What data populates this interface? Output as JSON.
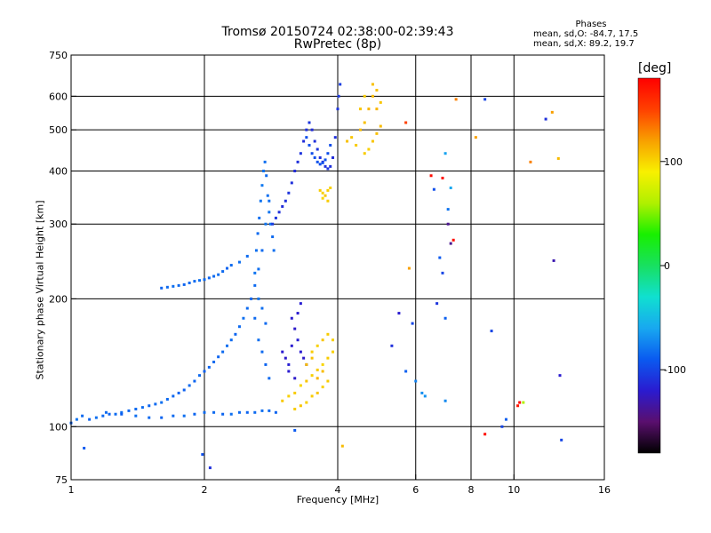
{
  "header": {
    "title_line1": "Tromsø 20150724 02:38:00-02:39:43",
    "title_line2": "RwPretec (8p)"
  },
  "phases": {
    "heading": "Phases",
    "o_line": "mean, sd,O: -84.7, 17.5",
    "x_line": "mean, sd,X:  89.2, 19.7"
  },
  "colorbar": {
    "label": "[deg]",
    "ticks": [
      {
        "value": 100,
        "label": "100"
      },
      {
        "value": 0,
        "label": "0"
      },
      {
        "value": -100,
        "label": "-100"
      }
    ],
    "range": [
      -180,
      180
    ],
    "colors": [
      "#000000",
      "#5a0f6e",
      "#2a1bd0",
      "#0a5af0",
      "#18a8f0",
      "#10e0d0",
      "#18e060",
      "#18f000",
      "#b0f000",
      "#f8f000",
      "#f8a000",
      "#ff4000",
      "#ff0000"
    ]
  },
  "chart_data": {
    "type": "scatter",
    "xlabel": "Frequency [MHz]",
    "ylabel": "Stationary phase Virtual Height [km]",
    "xscale": "log",
    "yscale": "log",
    "xlim": [
      1,
      16
    ],
    "ylim": [
      75,
      750
    ],
    "x_ticks": [
      {
        "value": 1,
        "label": "1"
      },
      {
        "value": 2,
        "label": "2"
      },
      {
        "value": 4,
        "label": "4"
      },
      {
        "value": 6,
        "label": "6"
      },
      {
        "value": 8,
        "label": "8"
      },
      {
        "value": 10,
        "label": "10"
      },
      {
        "value": 16,
        "label": "16"
      }
    ],
    "y_ticks": [
      {
        "value": 75,
        "label": "75"
      },
      {
        "value": 100,
        "label": "100"
      },
      {
        "value": 200,
        "label": "200"
      },
      {
        "value": 300,
        "label": "300"
      },
      {
        "value": 400,
        "label": "400"
      },
      {
        "value": 500,
        "label": "500"
      },
      {
        "value": 600,
        "label": "600"
      },
      {
        "value": 750,
        "label": "750"
      }
    ],
    "grid_x": [
      2,
      4,
      6,
      8,
      10
    ],
    "grid_y": [
      100,
      200,
      300,
      400,
      500,
      600
    ],
    "color_by": "phase [deg]",
    "points": [
      [
        1.0,
        102,
        -88
      ],
      [
        1.03,
        104,
        -80
      ],
      [
        1.06,
        106,
        -84
      ],
      [
        1.1,
        104,
        -86
      ],
      [
        1.14,
        105,
        -82
      ],
      [
        1.18,
        106,
        -84
      ],
      [
        1.22,
        107,
        -86
      ],
      [
        1.26,
        107,
        -84
      ],
      [
        1.3,
        108,
        -82
      ],
      [
        1.35,
        109,
        -85
      ],
      [
        1.4,
        110,
        -84
      ],
      [
        1.45,
        111,
        -83
      ],
      [
        1.5,
        112,
        -86
      ],
      [
        1.55,
        113,
        -84
      ],
      [
        1.6,
        114,
        -82
      ],
      [
        1.65,
        116,
        -84
      ],
      [
        1.7,
        118,
        -85
      ],
      [
        1.75,
        120,
        -86
      ],
      [
        1.8,
        122,
        -88
      ],
      [
        1.85,
        125,
        -84
      ],
      [
        1.9,
        128,
        -86
      ],
      [
        1.95,
        132,
        -84
      ],
      [
        2.0,
        135,
        -88
      ],
      [
        2.05,
        138,
        -86
      ],
      [
        2.1,
        142,
        -84
      ],
      [
        2.15,
        146,
        -86
      ],
      [
        2.2,
        150,
        -84
      ],
      [
        2.25,
        155,
        -82
      ],
      [
        2.3,
        160,
        -84
      ],
      [
        2.35,
        165,
        -86
      ],
      [
        2.4,
        172,
        -84
      ],
      [
        2.45,
        180,
        -82
      ],
      [
        2.5,
        190,
        -84
      ],
      [
        2.55,
        200,
        -86
      ],
      [
        2.6,
        215,
        -84
      ],
      [
        2.65,
        235,
        -82
      ],
      [
        2.7,
        260,
        -84
      ],
      [
        2.75,
        300,
        -80
      ],
      [
        2.8,
        340,
        -82
      ],
      [
        1.2,
        108,
        -84
      ],
      [
        1.3,
        107,
        -88
      ],
      [
        1.4,
        106,
        -82
      ],
      [
        1.5,
        105,
        -84
      ],
      [
        1.6,
        105,
        -86
      ],
      [
        1.7,
        106,
        -84
      ],
      [
        1.8,
        106,
        -82
      ],
      [
        1.9,
        107,
        -86
      ],
      [
        2.0,
        108,
        -84
      ],
      [
        2.1,
        108,
        -84
      ],
      [
        2.2,
        107,
        -86
      ],
      [
        2.3,
        107,
        -82
      ],
      [
        2.4,
        108,
        -84
      ],
      [
        2.5,
        108,
        -86
      ],
      [
        2.6,
        108,
        -84
      ],
      [
        2.7,
        109,
        -82
      ],
      [
        2.8,
        109,
        -84
      ],
      [
        2.9,
        108,
        -86
      ],
      [
        1.6,
        212,
        -86
      ],
      [
        1.65,
        213,
        -84
      ],
      [
        1.7,
        214,
        -82
      ],
      [
        1.75,
        215,
        -84
      ],
      [
        1.8,
        216,
        -86
      ],
      [
        1.85,
        218,
        -84
      ],
      [
        1.9,
        220,
        -84
      ],
      [
        1.95,
        221,
        -82
      ],
      [
        2.0,
        222,
        -84
      ],
      [
        2.05,
        224,
        -86
      ],
      [
        2.1,
        226,
        -84
      ],
      [
        2.15,
        228,
        -82
      ],
      [
        2.2,
        232,
        -84
      ],
      [
        2.25,
        236,
        -86
      ],
      [
        2.3,
        240,
        -84
      ],
      [
        2.4,
        244,
        -82
      ],
      [
        2.5,
        252,
        -84
      ],
      [
        2.6,
        230,
        -80
      ],
      [
        2.62,
        260,
        -82
      ],
      [
        2.64,
        285,
        -84
      ],
      [
        2.66,
        310,
        -82
      ],
      [
        2.68,
        340,
        -80
      ],
      [
        2.7,
        370,
        -78
      ],
      [
        2.72,
        400,
        -80
      ],
      [
        2.74,
        420,
        -82
      ],
      [
        2.76,
        390,
        -84
      ],
      [
        2.78,
        350,
        -82
      ],
      [
        2.8,
        320,
        -80
      ],
      [
        2.82,
        300,
        -82
      ],
      [
        2.85,
        280,
        -84
      ],
      [
        2.87,
        260,
        -82
      ],
      [
        2.6,
        180,
        -84
      ],
      [
        2.65,
        160,
        -82
      ],
      [
        2.7,
        150,
        -84
      ],
      [
        2.75,
        140,
        -86
      ],
      [
        2.8,
        130,
        -84
      ],
      [
        2.65,
        200,
        -80
      ],
      [
        2.7,
        190,
        -82
      ],
      [
        2.75,
        175,
        -84
      ],
      [
        2.85,
        300,
        -105
      ],
      [
        2.9,
        310,
        -108
      ],
      [
        2.95,
        320,
        -110
      ],
      [
        3.0,
        330,
        -112
      ],
      [
        3.05,
        340,
        -110
      ],
      [
        3.1,
        355,
        -108
      ],
      [
        3.15,
        375,
        -110
      ],
      [
        3.2,
        400,
        -112
      ],
      [
        3.25,
        420,
        -110
      ],
      [
        3.3,
        440,
        -108
      ],
      [
        3.35,
        470,
        -112
      ],
      [
        3.4,
        500,
        -110
      ],
      [
        3.45,
        520,
        -108
      ],
      [
        3.5,
        500,
        -112
      ],
      [
        3.55,
        470,
        -110
      ],
      [
        3.6,
        450,
        -108
      ],
      [
        3.65,
        430,
        -110
      ],
      [
        3.7,
        420,
        -112
      ],
      [
        3.75,
        410,
        -110
      ],
      [
        3.8,
        405,
        -108
      ],
      [
        3.85,
        410,
        -110
      ],
      [
        3.9,
        430,
        -112
      ],
      [
        3.95,
        480,
        -110
      ],
      [
        4.0,
        560,
        -108
      ],
      [
        4.02,
        600,
        -106
      ],
      [
        4.05,
        640,
        -104
      ],
      [
        3.4,
        480,
        -95
      ],
      [
        3.45,
        460,
        -94
      ],
      [
        3.5,
        440,
        -96
      ],
      [
        3.55,
        430,
        -95
      ],
      [
        3.6,
        420,
        -94
      ],
      [
        3.65,
        415,
        -96
      ],
      [
        3.7,
        418,
        -95
      ],
      [
        3.75,
        425,
        -94
      ],
      [
        3.8,
        440,
        -95
      ],
      [
        3.85,
        460,
        -96
      ],
      [
        3.0,
        150,
        -120
      ],
      [
        3.05,
        145,
        -122
      ],
      [
        3.1,
        140,
        -118
      ],
      [
        3.15,
        155,
        -120
      ],
      [
        3.2,
        170,
        -122
      ],
      [
        3.25,
        160,
        -118
      ],
      [
        3.3,
        150,
        -120
      ],
      [
        3.35,
        145,
        -122
      ],
      [
        3.4,
        140,
        -118
      ],
      [
        3.1,
        135,
        -120
      ],
      [
        3.2,
        130,
        -122
      ],
      [
        3.15,
        180,
        -120
      ],
      [
        3.3,
        195,
        -118
      ],
      [
        3.25,
        185,
        -120
      ],
      [
        3.0,
        115,
        105
      ],
      [
        3.1,
        118,
        102
      ],
      [
        3.2,
        120,
        104
      ],
      [
        3.3,
        125,
        100
      ],
      [
        3.4,
        128,
        106
      ],
      [
        3.5,
        132,
        102
      ],
      [
        3.6,
        136,
        104
      ],
      [
        3.7,
        140,
        100
      ],
      [
        3.8,
        145,
        104
      ],
      [
        3.9,
        150,
        102
      ],
      [
        3.2,
        110,
        104
      ],
      [
        3.3,
        112,
        106
      ],
      [
        3.4,
        114,
        102
      ],
      [
        3.5,
        118,
        104
      ],
      [
        3.6,
        120,
        106
      ],
      [
        3.7,
        124,
        102
      ],
      [
        3.8,
        128,
        104
      ],
      [
        3.5,
        150,
        104
      ],
      [
        3.6,
        155,
        102
      ],
      [
        3.7,
        160,
        106
      ],
      [
        3.8,
        165,
        104
      ],
      [
        3.9,
        160,
        102
      ],
      [
        3.4,
        140,
        110
      ],
      [
        3.5,
        145,
        108
      ],
      [
        3.6,
        130,
        112
      ],
      [
        3.7,
        135,
        110
      ],
      [
        3.65,
        360,
        104
      ],
      [
        3.7,
        355,
        102
      ],
      [
        3.75,
        350,
        106
      ],
      [
        3.8,
        360,
        104
      ],
      [
        3.85,
        365,
        102
      ],
      [
        3.7,
        345,
        100
      ],
      [
        3.8,
        340,
        104
      ],
      [
        4.2,
        470,
        108
      ],
      [
        4.3,
        480,
        106
      ],
      [
        4.4,
        460,
        104
      ],
      [
        4.5,
        500,
        110
      ],
      [
        4.6,
        520,
        108
      ],
      [
        4.7,
        560,
        112
      ],
      [
        4.8,
        600,
        110
      ],
      [
        4.9,
        620,
        108
      ],
      [
        5.0,
        580,
        106
      ],
      [
        4.6,
        440,
        104
      ],
      [
        4.7,
        450,
        102
      ],
      [
        4.8,
        470,
        106
      ],
      [
        4.9,
        490,
        108
      ],
      [
        5.0,
        510,
        110
      ],
      [
        4.5,
        560,
        106
      ],
      [
        4.6,
        600,
        104
      ],
      [
        4.8,
        640,
        108
      ],
      [
        4.9,
        560,
        112
      ],
      [
        5.7,
        520,
        150
      ],
      [
        5.8,
        236,
        120
      ],
      [
        6.5,
        390,
        175
      ],
      [
        6.6,
        362,
        -95
      ],
      [
        6.7,
        195,
        -108
      ],
      [
        6.8,
        250,
        -90
      ],
      [
        6.9,
        230,
        -100
      ],
      [
        7.0,
        180,
        -88
      ],
      [
        7.0,
        115,
        -72
      ],
      [
        7.1,
        325,
        -80
      ],
      [
        7.1,
        300,
        -140
      ],
      [
        7.2,
        270,
        -140
      ],
      [
        7.3,
        275,
        175
      ],
      [
        7.4,
        590,
        130
      ],
      [
        7.0,
        440,
        -62
      ],
      [
        6.9,
        385,
        175
      ],
      [
        7.2,
        365,
        -60
      ],
      [
        8.2,
        480,
        120
      ],
      [
        8.6,
        590,
        -100
      ],
      [
        8.6,
        96,
        175
      ],
      [
        8.9,
        168,
        -100
      ],
      [
        9.4,
        100,
        -100
      ],
      [
        9.6,
        104,
        -88
      ],
      [
        10.2,
        112,
        170
      ],
      [
        10.3,
        114,
        178
      ],
      [
        10.5,
        114,
        60
      ],
      [
        10.9,
        420,
        130
      ],
      [
        11.8,
        530,
        -110
      ],
      [
        12.2,
        550,
        120
      ],
      [
        12.6,
        428,
        110
      ],
      [
        12.7,
        132,
        -120
      ],
      [
        12.8,
        93,
        -100
      ],
      [
        12.3,
        246,
        -130
      ],
      [
        5.3,
        155,
        -110
      ],
      [
        5.5,
        185,
        -120
      ],
      [
        5.7,
        135,
        -88
      ],
      [
        5.9,
        175,
        -100
      ],
      [
        6.0,
        128,
        -75
      ],
      [
        6.2,
        120,
        -70
      ],
      [
        6.3,
        118,
        -68
      ],
      [
        1.07,
        89,
        -90
      ],
      [
        2.06,
        80,
        -110
      ],
      [
        1.98,
        86,
        -95
      ],
      [
        4.1,
        90,
        110
      ],
      [
        3.2,
        98,
        -90
      ]
    ]
  }
}
